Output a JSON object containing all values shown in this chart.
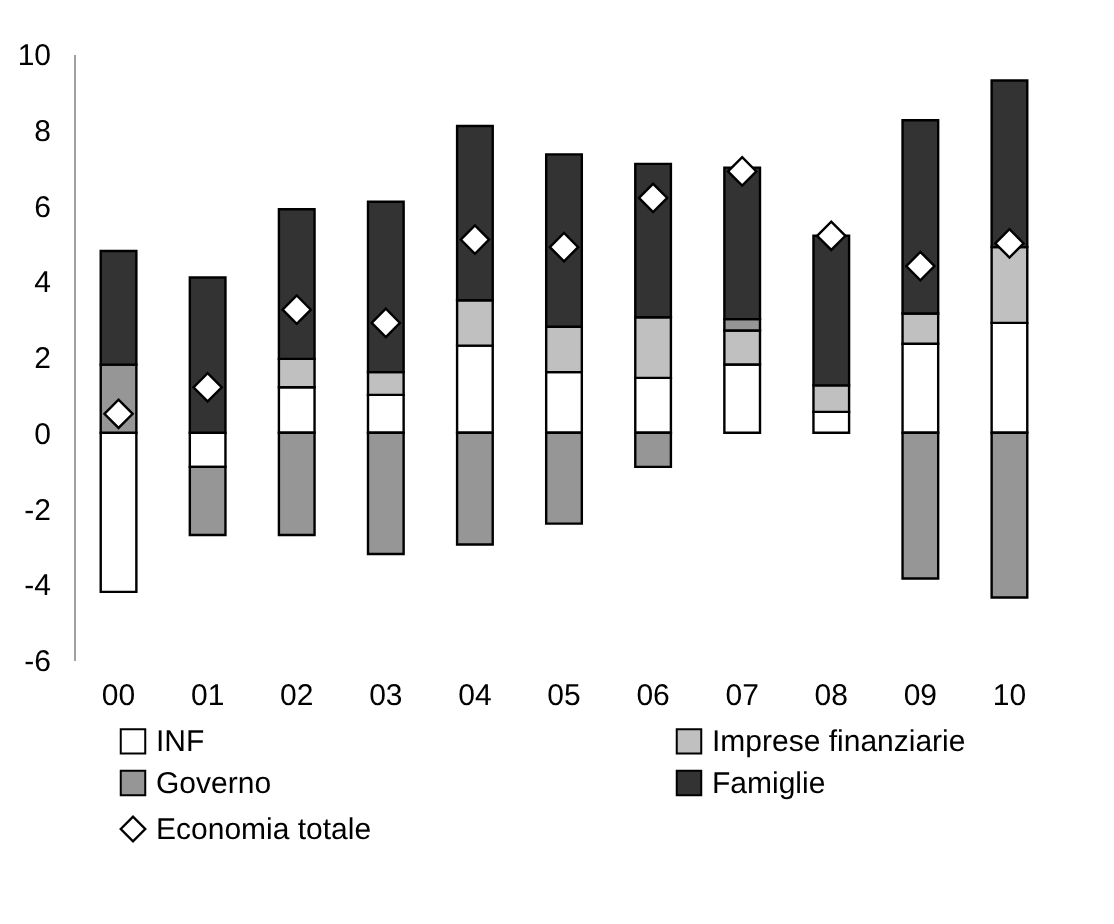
{
  "chart_data": {
    "type": "bar",
    "stacked": true,
    "categories": [
      "00",
      "01",
      "02",
      "03",
      "04",
      "05",
      "06",
      "07",
      "08",
      "09",
      "10"
    ],
    "series": [
      {
        "name": "INF",
        "color": "#ffffff",
        "values": [
          -4.2,
          -0.9,
          1.2,
          1.0,
          2.3,
          1.6,
          1.45,
          1.8,
          0.55,
          2.35,
          2.9
        ]
      },
      {
        "name": "Imprese finanziarie",
        "color": "#c0c0c0",
        "values": [
          null,
          null,
          0.75,
          0.6,
          1.2,
          1.2,
          1.6,
          0.9,
          0.7,
          0.8,
          2.0
        ]
      },
      {
        "name": "Governo",
        "color": "#969696",
        "values": [
          1.8,
          -1.8,
          -2.7,
          -3.2,
          -2.95,
          -2.4,
          -0.9,
          0.3,
          null,
          -3.85,
          -4.35
        ]
      },
      {
        "name": "Famiglie",
        "color": "#333333",
        "values": [
          3.0,
          4.1,
          3.95,
          4.5,
          4.6,
          4.55,
          4.05,
          4.0,
          3.95,
          5.1,
          4.4
        ]
      },
      {
        "name": "Economia totale",
        "type": "scatter",
        "marker": "diamond",
        "color": "#ffffff",
        "values": [
          0.5,
          1.2,
          3.25,
          2.9,
          5.1,
          4.9,
          6.2,
          6.9,
          5.2,
          4.4,
          5.0
        ]
      }
    ],
    "ylim": [
      -6,
      10
    ],
    "yticks": [
      -6,
      -4,
      -2,
      0,
      2,
      4,
      6,
      8,
      10
    ],
    "grid": false,
    "legend": "bottom"
  }
}
